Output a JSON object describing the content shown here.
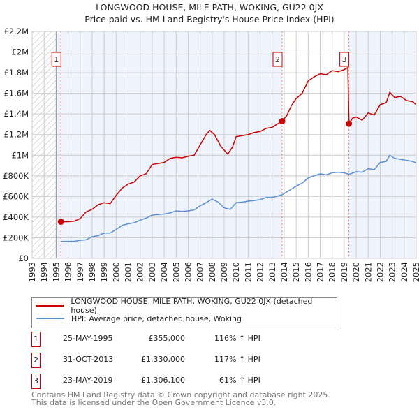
{
  "title": "LONGWOOD HOUSE, MILE PATH, WOKING, GU22 0JX",
  "subtitle": "Price paid vs. HM Land Registry's House Price Index (HPI)",
  "chart_data": {
    "type": "line",
    "title": "LONGWOOD HOUSE, MILE PATH, WOKING, GU22 0JX",
    "subtitle": "Price paid vs. HM Land Registry's House Price Index (HPI)",
    "xlim": [
      1993,
      2025
    ],
    "ylim": [
      0,
      2200000
    ],
    "x_ticks": [
      "1993",
      "1994",
      "1995",
      "1996",
      "1997",
      "1998",
      "1999",
      "2000",
      "2001",
      "2002",
      "2003",
      "2004",
      "2005",
      "2006",
      "2007",
      "2008",
      "2009",
      "2010",
      "2011",
      "2012",
      "2013",
      "2014",
      "2015",
      "2016",
      "2017",
      "2018",
      "2019",
      "2020",
      "2021",
      "2022",
      "2023",
      "2024",
      "2025"
    ],
    "y_ticks": [
      {
        "v": 0,
        "label": "£0"
      },
      {
        "v": 200000,
        "label": "£200K"
      },
      {
        "v": 400000,
        "label": "£400K"
      },
      {
        "v": 600000,
        "label": "£600K"
      },
      {
        "v": 800000,
        "label": "£800K"
      },
      {
        "v": 1000000,
        "label": "£1M"
      },
      {
        "v": 1200000,
        "label": "£1.2M"
      },
      {
        "v": 1400000,
        "label": "£1.4M"
      },
      {
        "v": 1600000,
        "label": "£1.6M"
      },
      {
        "v": 1800000,
        "label": "£1.8M"
      },
      {
        "v": 2000000,
        "label": "£2M"
      },
      {
        "v": 2200000,
        "label": "£2.2M"
      }
    ],
    "grid": true,
    "colors": {
      "property": "#cc0000",
      "hpi": "#5b8fd4",
      "shade": "#eef3fc"
    },
    "series": [
      {
        "name": "LONGWOOD HOUSE, MILE PATH, WOKING, GU22 0JX (detached house)",
        "color": "#cc0000",
        "points": [
          [
            1995.4,
            355000
          ],
          [
            1996,
            355000
          ],
          [
            1996.5,
            360000
          ],
          [
            1997,
            385000
          ],
          [
            1997.5,
            450000
          ],
          [
            1998,
            475000
          ],
          [
            1998.5,
            520000
          ],
          [
            1999,
            540000
          ],
          [
            1999.5,
            530000
          ],
          [
            2000,
            610000
          ],
          [
            2000.5,
            680000
          ],
          [
            2001,
            720000
          ],
          [
            2001.5,
            740000
          ],
          [
            2002,
            800000
          ],
          [
            2002.5,
            820000
          ],
          [
            2003,
            910000
          ],
          [
            2003.5,
            920000
          ],
          [
            2004,
            930000
          ],
          [
            2004.5,
            970000
          ],
          [
            2005,
            980000
          ],
          [
            2005.5,
            975000
          ],
          [
            2006,
            990000
          ],
          [
            2006.5,
            1000000
          ],
          [
            2007,
            1100000
          ],
          [
            2007.5,
            1200000
          ],
          [
            2007.8,
            1240000
          ],
          [
            2008.2,
            1200000
          ],
          [
            2008.7,
            1090000
          ],
          [
            2009.3,
            1010000
          ],
          [
            2009.7,
            1080000
          ],
          [
            2010,
            1180000
          ],
          [
            2010.5,
            1190000
          ],
          [
            2011,
            1200000
          ],
          [
            2011.5,
            1220000
          ],
          [
            2012,
            1230000
          ],
          [
            2012.5,
            1260000
          ],
          [
            2013,
            1270000
          ],
          [
            2013.8,
            1330000
          ],
          [
            2014.2,
            1380000
          ],
          [
            2014.6,
            1480000
          ],
          [
            2015,
            1550000
          ],
          [
            2015.5,
            1600000
          ],
          [
            2016,
            1720000
          ],
          [
            2016.5,
            1760000
          ],
          [
            2017,
            1790000
          ],
          [
            2017.5,
            1780000
          ],
          [
            2018,
            1820000
          ],
          [
            2018.5,
            1810000
          ],
          [
            2019,
            1830000
          ],
          [
            2019.3,
            1850000
          ],
          [
            2019.4,
            1306100
          ],
          [
            2019.7,
            1360000
          ],
          [
            2020,
            1370000
          ],
          [
            2020.5,
            1340000
          ],
          [
            2021,
            1410000
          ],
          [
            2021.5,
            1390000
          ],
          [
            2022,
            1490000
          ],
          [
            2022.5,
            1510000
          ],
          [
            2022.8,
            1610000
          ],
          [
            2023.2,
            1560000
          ],
          [
            2023.7,
            1570000
          ],
          [
            2024.2,
            1530000
          ],
          [
            2024.7,
            1520000
          ],
          [
            2025,
            1490000
          ]
        ]
      },
      {
        "name": "HPI: Average price, detached house, Woking",
        "color": "#5b8fd4",
        "points": [
          [
            1995.4,
            164000
          ],
          [
            1996,
            165000
          ],
          [
            1996.5,
            165000
          ],
          [
            1997,
            175000
          ],
          [
            1997.5,
            180000
          ],
          [
            1998,
            210000
          ],
          [
            1998.5,
            220000
          ],
          [
            1999,
            245000
          ],
          [
            1999.5,
            245000
          ],
          [
            2000,
            280000
          ],
          [
            2000.5,
            320000
          ],
          [
            2001,
            335000
          ],
          [
            2001.5,
            345000
          ],
          [
            2002,
            370000
          ],
          [
            2002.5,
            390000
          ],
          [
            2003,
            420000
          ],
          [
            2003.5,
            425000
          ],
          [
            2004,
            430000
          ],
          [
            2004.5,
            440000
          ],
          [
            2005,
            460000
          ],
          [
            2005.5,
            455000
          ],
          [
            2006,
            460000
          ],
          [
            2006.5,
            470000
          ],
          [
            2007,
            510000
          ],
          [
            2007.5,
            540000
          ],
          [
            2008,
            575000
          ],
          [
            2008.5,
            545000
          ],
          [
            2009,
            490000
          ],
          [
            2009.5,
            475000
          ],
          [
            2010,
            540000
          ],
          [
            2010.5,
            545000
          ],
          [
            2011,
            555000
          ],
          [
            2011.5,
            560000
          ],
          [
            2012,
            570000
          ],
          [
            2012.5,
            590000
          ],
          [
            2013,
            590000
          ],
          [
            2013.8,
            615000
          ],
          [
            2014.3,
            650000
          ],
          [
            2015,
            700000
          ],
          [
            2015.5,
            730000
          ],
          [
            2016,
            780000
          ],
          [
            2016.5,
            800000
          ],
          [
            2017,
            820000
          ],
          [
            2017.5,
            810000
          ],
          [
            2018,
            830000
          ],
          [
            2018.5,
            835000
          ],
          [
            2019,
            830000
          ],
          [
            2019.4,
            815000
          ],
          [
            2020,
            840000
          ],
          [
            2020.5,
            835000
          ],
          [
            2021,
            870000
          ],
          [
            2021.5,
            860000
          ],
          [
            2022,
            930000
          ],
          [
            2022.5,
            940000
          ],
          [
            2022.8,
            1000000
          ],
          [
            2023.2,
            970000
          ],
          [
            2023.7,
            960000
          ],
          [
            2024.2,
            950000
          ],
          [
            2024.7,
            940000
          ],
          [
            2025,
            925000
          ]
        ]
      }
    ],
    "sales": [
      {
        "label": "1",
        "x": 1995.4,
        "price": 355000
      },
      {
        "label": "2",
        "x": 2013.83,
        "price": 1330000
      },
      {
        "label": "3",
        "x": 2019.39,
        "price": 1306100
      }
    ],
    "legend_position": "below"
  },
  "legend": [
    {
      "label": "LONGWOOD HOUSE, MILE PATH, WOKING, GU22 0JX (detached house)",
      "color": "#cc0000"
    },
    {
      "label": "HPI: Average price, detached house, Woking",
      "color": "#5b8fd4"
    }
  ],
  "transactions": [
    {
      "num": "1",
      "date": "25-MAY-1995",
      "price": "£355,000",
      "hpi": "116% ↑ HPI"
    },
    {
      "num": "2",
      "date": "31-OCT-2013",
      "price": "£1,330,000",
      "hpi": "117% ↑ HPI"
    },
    {
      "num": "3",
      "date": "23-MAY-2019",
      "price": "£1,306,100",
      "hpi": "61% ↑ HPI"
    }
  ],
  "footer": {
    "line1": "Contains HM Land Registry data © Crown copyright and database right 2025.",
    "line2": "This data is licensed under the Open Government Licence v3.0."
  }
}
